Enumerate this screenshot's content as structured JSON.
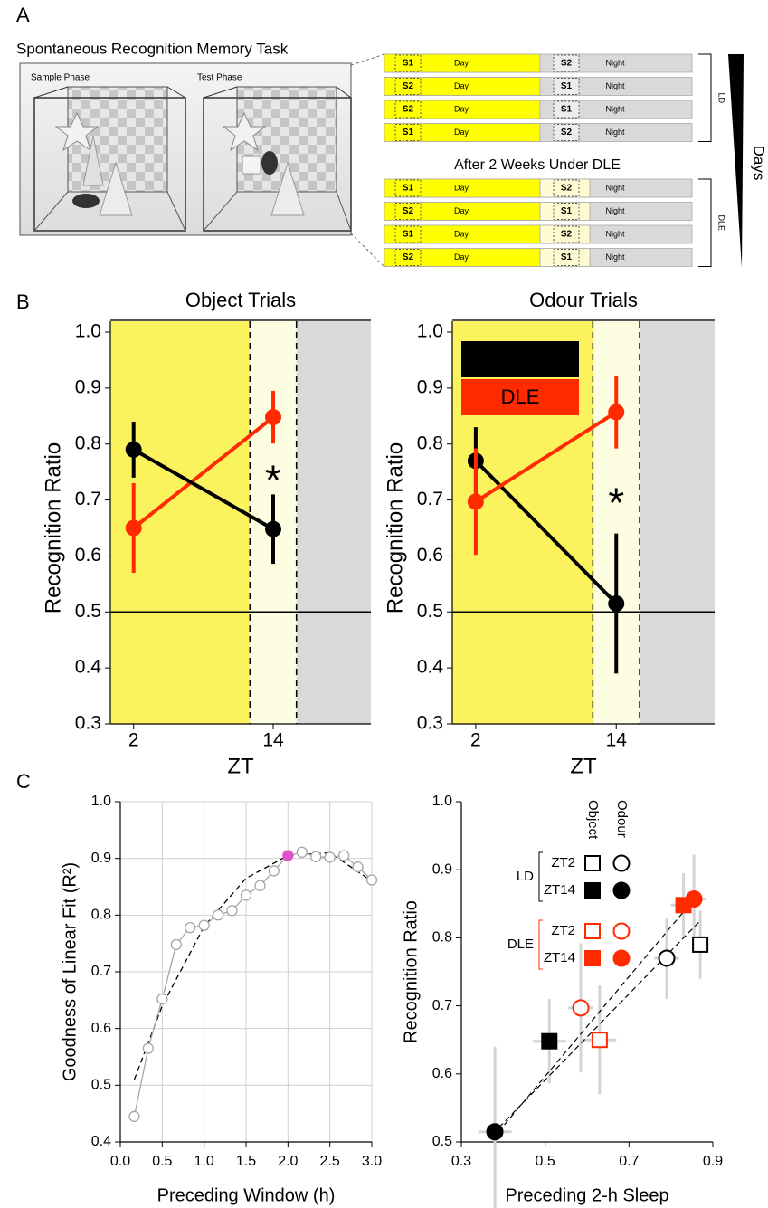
{
  "panel_labels": [
    "A",
    "B",
    "C"
  ],
  "panel_a": {
    "title": "Spontaneous Recognition Memory Task",
    "phases": [
      "Sample Phase",
      "Test Phase"
    ],
    "day": "Day",
    "night": "Night",
    "subtitle": "After 2 Weeks Under DLE",
    "axis": "Days",
    "schedule": [
      {
        "name": "LD",
        "rows": [
          [
            "S1",
            "S2"
          ],
          [
            "S2",
            "S1"
          ],
          [
            "S2",
            "S1"
          ],
          [
            "S1",
            "S2"
          ]
        ]
      },
      {
        "name": "DLE",
        "rows": [
          [
            "S1",
            "S2"
          ],
          [
            "S2",
            "S1"
          ],
          [
            "S1",
            "S2"
          ],
          [
            "S2",
            "S1"
          ]
        ]
      }
    ]
  },
  "chart_data": [
    {
      "type": "line",
      "title": "Object Trials",
      "xlabel": "ZT",
      "ylabel": "Recognition Ratio",
      "x": [
        2,
        14
      ],
      "xlim": [
        0,
        22.4
      ],
      "xticks": [
        2,
        14
      ],
      "ylim": [
        0.3,
        1.0
      ],
      "yticks": [
        0.3,
        0.4,
        0.5,
        0.6,
        0.7,
        0.8,
        0.9,
        {
          "value": 1.0,
          "label": "1.0"
        }
      ],
      "reference_line": 0.5,
      "regions": [
        {
          "from": 0,
          "to": 12,
          "color": "#fbf35e"
        },
        {
          "from": 12,
          "to": 16,
          "color": "#fdfde2"
        },
        {
          "from": 16,
          "to": 22.4,
          "color": "#d9d9d9"
        }
      ],
      "series": [
        {
          "name": "DLE",
          "color": "#ff2a00",
          "values": [
            0.65,
            0.848
          ],
          "errors": [
            0.08,
            0.047
          ]
        },
        {
          "name": "LD",
          "color": "#000000",
          "values": [
            0.79,
            0.648
          ],
          "errors": [
            0.05,
            0.062
          ]
        }
      ],
      "annotations": [
        {
          "text": "*",
          "x": 14,
          "y": 0.752
        }
      ],
      "legend": false
    },
    {
      "type": "line",
      "title": "Odour Trials",
      "xlabel": "ZT",
      "ylabel": "Recognition Ratio",
      "x": [
        2,
        14
      ],
      "xlim": [
        0,
        22.4
      ],
      "xticks": [
        2,
        14
      ],
      "ylim": [
        0.3,
        1.0
      ],
      "yticks": [
        0.3,
        0.4,
        0.5,
        0.6,
        0.7,
        0.8,
        0.9,
        {
          "value": 1.0,
          "label": "1.0"
        }
      ],
      "reference_line": 0.5,
      "regions": [
        {
          "from": 0,
          "to": 12,
          "color": "#fbf35e"
        },
        {
          "from": 12,
          "to": 16,
          "color": "#fdfde2"
        },
        {
          "from": 16,
          "to": 22.4,
          "color": "#d9d9d9"
        }
      ],
      "series": [
        {
          "name": "LD",
          "color": "#000000",
          "values": [
            0.77,
            0.515
          ],
          "errors": [
            0.06,
            0.125
          ]
        },
        {
          "name": "DLE",
          "color": "#ff2a00",
          "values": [
            0.697,
            0.857
          ],
          "errors": [
            0.095,
            0.065
          ]
        }
      ],
      "annotations": [
        {
          "text": "*",
          "x": 14,
          "y": 0.712
        }
      ],
      "legend": true,
      "legend_position": "upper left"
    },
    {
      "type": "line",
      "xlabel": "Preceding Window (h)",
      "ylabel": "Goodness of Linear Fit (R²)",
      "x": [
        0.167,
        0.333,
        0.5,
        0.667,
        0.833,
        1.0,
        1.167,
        1.333,
        1.5,
        1.667,
        1.833,
        2.0,
        2.167,
        2.333,
        2.5,
        2.667,
        2.833,
        3.0
      ],
      "values": [
        0.445,
        0.565,
        0.652,
        0.748,
        0.778,
        0.782,
        0.8,
        0.808,
        0.835,
        0.852,
        0.878,
        0.905,
        0.911,
        0.903,
        0.902,
        0.905,
        0.885,
        0.862
      ],
      "color": "#a6a6a6",
      "highlight_index": 11,
      "highlight_color": "#e050c8",
      "fit": {
        "x": [
          0.167,
          0.5,
          1.0,
          1.5,
          2.0,
          2.5,
          3.0
        ],
        "values": [
          0.51,
          0.64,
          0.78,
          0.865,
          0.905,
          0.91,
          0.86
        ],
        "color": "#000000"
      },
      "xlim": [
        0,
        3
      ],
      "xticks": [
        {
          "value": 0,
          "label": "0.0"
        },
        0.5,
        {
          "value": 1,
          "label": "1.0"
        },
        1.5,
        {
          "value": 2,
          "label": "2.0"
        },
        2.5,
        {
          "value": 3,
          "label": "3.0"
        }
      ],
      "ylim": [
        0.4,
        1.0
      ],
      "yticks": [
        0.4,
        0.5,
        0.6,
        0.7,
        0.8,
        0.9,
        {
          "value": 1.0,
          "label": "1.0"
        }
      ],
      "grid": true
    },
    {
      "type": "scatter",
      "xlabel": "Preceding 2-h Sleep",
      "ylabel": "Recognition Ratio",
      "xlim": [
        0.3,
        0.9
      ],
      "xticks": [
        0.3,
        0.5,
        0.7,
        0.9
      ],
      "ylim": [
        0.5,
        1.0
      ],
      "yticks": [
        0.5,
        0.6,
        0.7,
        0.8,
        0.9,
        {
          "value": 1.0,
          "label": "1.0"
        }
      ],
      "error_color": "#d4d4d4",
      "legend": {
        "columns": [
          "Object",
          "Odour"
        ],
        "groups": [
          {
            "name": "LD",
            "color": "#000000",
            "rows": [
              "ZT2",
              "ZT14"
            ]
          },
          {
            "name": "DLE",
            "color": "#ff2a00",
            "rows": [
              "ZT2",
              "ZT14"
            ]
          }
        ]
      },
      "fits": [
        {
          "x": [
            0.375,
            0.86
          ],
          "values": [
            0.505,
            0.86
          ]
        },
        {
          "x": [
            0.375,
            0.87
          ],
          "values": [
            0.512,
            0.825
          ]
        }
      ],
      "points": [
        {
          "x": 0.87,
          "y": 0.79,
          "xerr": 0.02,
          "yerr": 0.05,
          "marker": "square",
          "filled": false,
          "color": "#000000"
        },
        {
          "x": 0.51,
          "y": 0.648,
          "xerr": 0.04,
          "yerr": 0.062,
          "marker": "square",
          "filled": true,
          "color": "#000000"
        },
        {
          "x": 0.79,
          "y": 0.77,
          "xerr": 0.03,
          "yerr": 0.06,
          "marker": "circle",
          "filled": false,
          "color": "#000000"
        },
        {
          "x": 0.38,
          "y": 0.515,
          "xerr": 0.04,
          "yerr": 0.125,
          "marker": "circle",
          "filled": true,
          "color": "#000000"
        },
        {
          "x": 0.63,
          "y": 0.65,
          "xerr": 0.04,
          "yerr": 0.08,
          "marker": "square",
          "filled": false,
          "color": "#ff2a00"
        },
        {
          "x": 0.83,
          "y": 0.848,
          "xerr": 0.03,
          "yerr": 0.047,
          "marker": "square",
          "filled": true,
          "color": "#ff2a00"
        },
        {
          "x": 0.585,
          "y": 0.697,
          "xerr": 0.03,
          "yerr": 0.095,
          "marker": "circle",
          "filled": false,
          "color": "#ff2a00"
        },
        {
          "x": 0.855,
          "y": 0.857,
          "xerr": 0.03,
          "yerr": 0.065,
          "marker": "circle",
          "filled": true,
          "color": "#ff2a00"
        }
      ]
    }
  ]
}
